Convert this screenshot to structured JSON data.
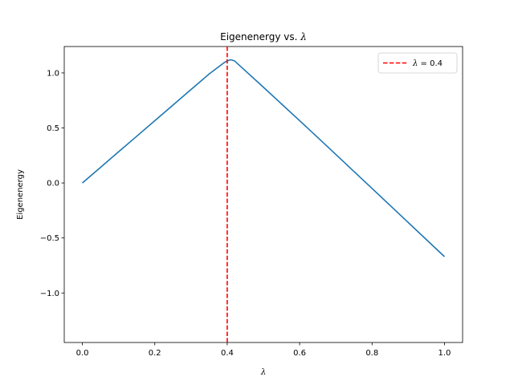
{
  "chart_data": {
    "type": "line",
    "title_prefix": "Eigenenergy vs. ",
    "title_symbol": "λ",
    "xlabel": "λ",
    "ylabel": "Eigenenergy",
    "xlim": [
      -0.05,
      1.05
    ],
    "ylim": [
      -1.45,
      1.24
    ],
    "x_ticks": [
      0.0,
      0.2,
      0.4,
      0.6,
      0.8,
      1.0
    ],
    "x_tick_labels": [
      "0.0",
      "0.2",
      "0.4",
      "0.6",
      "0.8",
      "1.0"
    ],
    "y_ticks": [
      -1.0,
      -0.5,
      0.0,
      0.5,
      1.0
    ],
    "y_tick_labels": [
      "−1.0",
      "−0.5",
      "0.0",
      "0.5",
      "1.0"
    ],
    "series": [
      {
        "color": "#1f77b4",
        "x": [
          0.0,
          0.05,
          0.1,
          0.15,
          0.2,
          0.25,
          0.3,
          0.35,
          0.39,
          0.4,
          0.41,
          0.42,
          0.45,
          0.5,
          0.55,
          0.6,
          0.65,
          0.7,
          0.75,
          0.8,
          0.85,
          0.9,
          0.95,
          1.0
        ],
        "y": [
          0.0,
          0.141,
          0.283,
          0.424,
          0.566,
          0.707,
          0.849,
          0.99,
          1.09,
          1.11,
          1.12,
          1.11,
          1.02,
          0.87,
          0.718,
          0.566,
          0.413,
          0.259,
          0.104,
          -0.05,
          -0.205,
          -0.36,
          -0.515,
          -0.67
        ]
      }
    ],
    "vline": {
      "x": 0.4,
      "color": "#ff0000",
      "style": "dashed",
      "label_symbol": "λ",
      "label_rest": " = 0.4"
    },
    "legend_position": "upper right",
    "grid": false
  }
}
